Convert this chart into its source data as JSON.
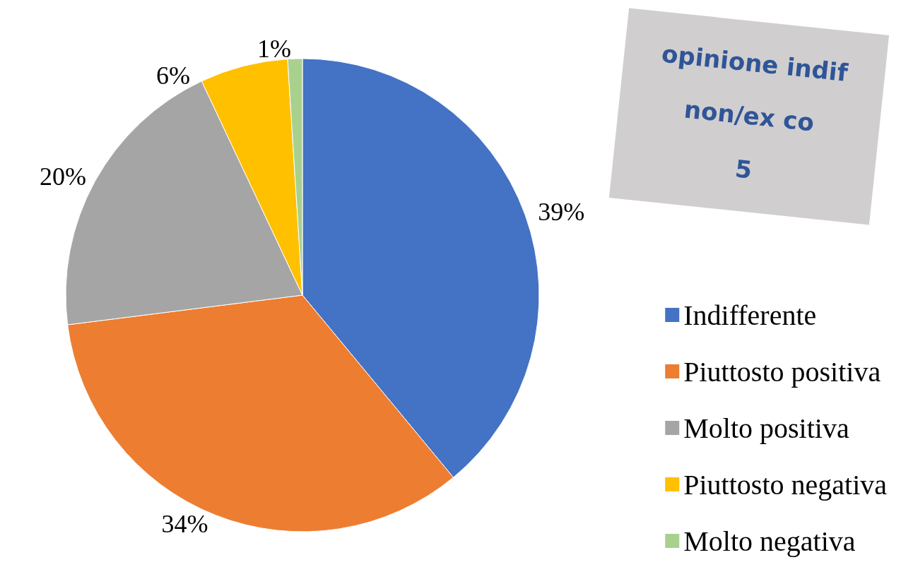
{
  "chart_data": {
    "type": "pie",
    "categories": [
      "Indifferente",
      "Piuttosto positiva",
      "Molto positiva",
      "Piuttosto negativa",
      "Molto negativa"
    ],
    "values": [
      39,
      34,
      20,
      6,
      1
    ],
    "colors": [
      "#4472c4",
      "#ed7d31",
      "#a5a5a5",
      "#ffc000",
      "#a9d18e"
    ],
    "value_labels": [
      "39%",
      "34%",
      "20%",
      "6%",
      "1%"
    ],
    "legend": "bottom right",
    "annotations": [
      "opinione indif",
      "non/ex co",
      "5"
    ]
  }
}
